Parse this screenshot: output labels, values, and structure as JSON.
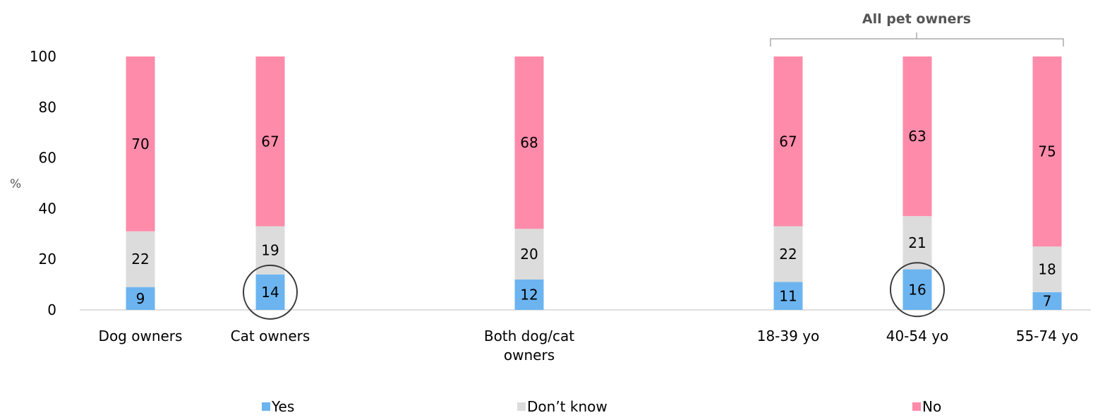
{
  "chart_data": {
    "type": "bar",
    "stacked": true,
    "ylabel": "%",
    "ylim": [
      0,
      100
    ],
    "yticks": [
      0,
      20,
      40,
      60,
      80,
      100
    ],
    "categories": [
      [
        "Dog owners"
      ],
      [
        "Cat owners"
      ],
      [
        "Both dog/cat",
        "owners"
      ],
      [
        "18-39 yo"
      ],
      [
        "40-54 yo"
      ],
      [
        "55-74 yo"
      ]
    ],
    "series": [
      {
        "name": "Yes",
        "color": "#6CB4F0",
        "values": [
          9,
          14,
          12,
          11,
          16,
          7
        ]
      },
      {
        "name": "Don’t know",
        "color": "#DCDCDC",
        "values": [
          22,
          19,
          20,
          22,
          21,
          18
        ]
      },
      {
        "name": "No",
        "color": "#FF8BAA",
        "values": [
          70,
          67,
          68,
          67,
          63,
          75
        ]
      }
    ],
    "group_annotation": {
      "label": "All pet owners",
      "categories": [
        3,
        4,
        5
      ]
    },
    "highlighted": [
      {
        "category": 1,
        "series": "Yes"
      },
      {
        "category": 4,
        "series": "Yes"
      }
    ],
    "legend_position": "bottom",
    "grid": false
  }
}
